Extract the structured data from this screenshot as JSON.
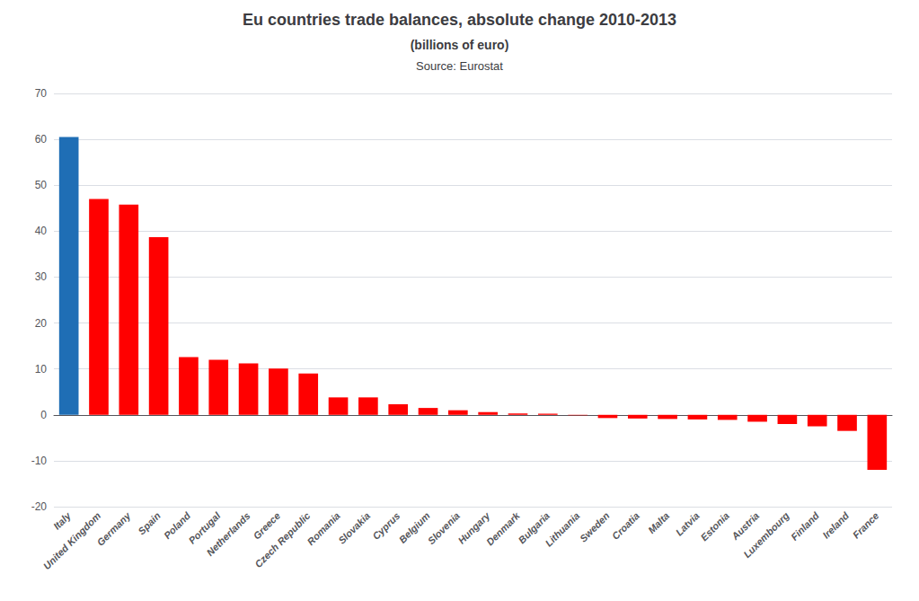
{
  "chart_data": {
    "type": "bar",
    "title": "Eu countries trade balances, absolute change 2010-2013",
    "subtitle": "(billions of euro)",
    "annotations": [
      "Source: Eurostat"
    ],
    "categories": [
      "Italy",
      "United Kingdom",
      "Germany",
      "Spain",
      "Poland",
      "Portugal",
      "Netherlands",
      "Greece",
      "Czech Republic",
      "Romania",
      "Slovakia",
      "Cyprus",
      "Belgium",
      "Slovenia",
      "Hungary",
      "Denmark",
      "Bulgaria",
      "Lithuania",
      "Sweden",
      "Croatia",
      "Malta",
      "Latvia",
      "Estonia",
      "Austria",
      "Luxembourg",
      "Finland",
      "Ireland",
      "France"
    ],
    "values": [
      60.5,
      47.0,
      45.8,
      38.7,
      12.6,
      12.0,
      11.2,
      10.1,
      9.0,
      3.8,
      3.8,
      2.3,
      1.5,
      1.0,
      0.6,
      0.3,
      0.25,
      -0.1,
      -0.7,
      -0.8,
      -0.9,
      -1.0,
      -1.1,
      -1.5,
      -2.0,
      -2.5,
      -3.5,
      -12.0
    ],
    "colors": [
      "#1f6eb5",
      "#ff0000",
      "#ff0000",
      "#ff0000",
      "#ff0000",
      "#ff0000",
      "#ff0000",
      "#ff0000",
      "#ff0000",
      "#ff0000",
      "#ff0000",
      "#ff0000",
      "#ff0000",
      "#ff0000",
      "#ff0000",
      "#ff0000",
      "#ff0000",
      "#ff0000",
      "#ff0000",
      "#ff0000",
      "#ff0000",
      "#ff0000",
      "#ff0000",
      "#ff0000",
      "#ff0000",
      "#ff0000",
      "#ff0000",
      "#ff0000"
    ],
    "ylim": [
      -20,
      70
    ],
    "yticks": [
      -20,
      -10,
      0,
      10,
      20,
      30,
      40,
      50,
      60,
      70
    ],
    "grid": true
  }
}
